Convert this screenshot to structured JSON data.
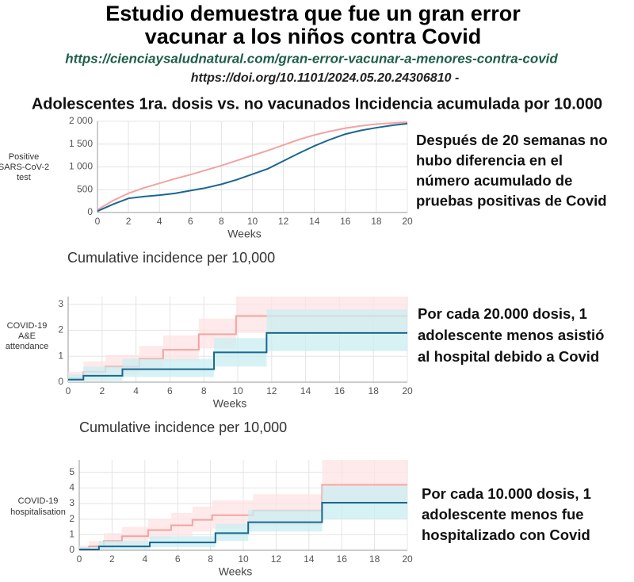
{
  "header": {
    "title": [
      "Estudio demuestra que fue un gran error",
      "vacunar a los niños contra Covid"
    ],
    "url": "https://cienciaysaludnatural.com/gran-error-vacunar-a-menores-contra-covid",
    "doi": "https://doi.org/10.1101/2024.05.20.24306810 -",
    "heading": "Adolescentes 1ra. dosis vs. no vacunados Incidencia acumulada por 10.000"
  },
  "chart_data": [
    {
      "type": "line",
      "ylabel": [
        "Positive",
        "SARS-CoV-2",
        "test"
      ],
      "xlabel": "Weeks",
      "annotation": [
        "Después de 20 semanas no",
        "hubo diferencia en el",
        "número acumulado de",
        "pruebas positivas de Covid"
      ],
      "x": [
        0,
        1,
        2,
        3,
        4,
        5,
        6,
        7,
        8,
        9,
        10,
        11,
        12,
        13,
        14,
        15,
        16,
        17,
        18,
        19,
        20
      ],
      "xlim": [
        0,
        20
      ],
      "xticks": [
        0,
        2,
        4,
        6,
        8,
        10,
        12,
        14,
        16,
        18,
        20
      ],
      "ylim": [
        0,
        2000
      ],
      "yticks": [
        0,
        500,
        {
          "value": 1000,
          "label": "1 000"
        },
        {
          "value": 1500,
          "label": "1 500"
        },
        {
          "value": 2000,
          "label": "2 000"
        }
      ],
      "grid": true,
      "series": [
        {
          "color": "#f2a3a3",
          "values": [
            60,
            260,
            420,
            540,
            640,
            740,
            830,
            930,
            1030,
            1140,
            1250,
            1360,
            1480,
            1600,
            1700,
            1780,
            1850,
            1900,
            1940,
            1960,
            1980
          ]
        },
        {
          "color": "#1a6790",
          "values": [
            30,
            180,
            310,
            350,
            380,
            420,
            480,
            540,
            620,
            720,
            840,
            960,
            1130,
            1300,
            1460,
            1600,
            1720,
            1800,
            1860,
            1910,
            1950
          ]
        }
      ]
    },
    {
      "type": "step",
      "title": "Cumulative incidence per 10,000",
      "ylabel": [
        "COVID-19",
        "A&E",
        "attendance"
      ],
      "xlabel": "Weeks",
      "annotation": [
        "Por cada 20.000 dosis, 1",
        "adolescente menos asistió",
        "al hospital debido a Covid"
      ],
      "xlim": [
        0,
        20
      ],
      "xticks": [
        0,
        2,
        4,
        6,
        8,
        10,
        12,
        14,
        16,
        18,
        20
      ],
      "ylim": [
        0,
        3.3
      ],
      "yticks": [
        0,
        1,
        2,
        3
      ],
      "grid": true,
      "series": [
        {
          "color": "#f2a3a3",
          "band_color": "#fde3e3",
          "x": [
            0,
            0.9,
            2.2,
            4.2,
            5.6,
            7.7,
            9.9
          ],
          "values": [
            0.15,
            0.4,
            0.6,
            0.9,
            1.25,
            1.85,
            2.55
          ],
          "lower": [
            0,
            0.15,
            0.3,
            0.5,
            0.8,
            1.3,
            1.9
          ],
          "upper": [
            0.4,
            0.8,
            1.05,
            1.4,
            1.8,
            2.45,
            3.3
          ]
        },
        {
          "color": "#1a6790",
          "band_color": "#c9eef2",
          "x": [
            0,
            0.9,
            3.2,
            8.6,
            11.7
          ],
          "values": [
            0.1,
            0.25,
            0.5,
            1.15,
            1.9
          ],
          "lower": [
            0,
            0.05,
            0.2,
            0.6,
            1.2
          ],
          "upper": [
            0.3,
            0.6,
            0.9,
            1.7,
            2.8
          ]
        }
      ]
    },
    {
      "type": "step",
      "title": "Cumulative incidence per 10,000",
      "ylabel": [
        "COVID-19",
        "hospitalisation"
      ],
      "xlabel": "Weeks",
      "annotation": [
        "Por cada 10.000 dosis, 1",
        "adolescente menos fue",
        "hospitalizado con Covid"
      ],
      "xlim": [
        0,
        20
      ],
      "xticks": [
        0,
        2,
        4,
        6,
        8,
        10,
        12,
        14,
        16,
        18,
        20
      ],
      "ylim": [
        0,
        5.8
      ],
      "yticks": [
        0,
        1,
        2,
        3,
        4,
        5
      ],
      "grid": true,
      "series": [
        {
          "color": "#f2a3a3",
          "band_color": "#fde3e3",
          "x": [
            0,
            0.6,
            1.5,
            2.6,
            4.2,
            5.6,
            6.9,
            8.1,
            10.6,
            14.8
          ],
          "values": [
            0.1,
            0.25,
            0.6,
            0.9,
            1.3,
            1.6,
            1.95,
            2.25,
            2.55,
            4.2
          ],
          "lower": [
            0,
            0.05,
            0.2,
            0.4,
            0.7,
            0.9,
            1.2,
            1.4,
            1.6,
            3.1
          ],
          "upper": [
            0.3,
            0.6,
            1.1,
            1.5,
            2.0,
            2.4,
            2.8,
            3.2,
            3.6,
            5.8
          ]
        },
        {
          "color": "#1a6790",
          "band_color": "#c9eef2",
          "x": [
            0,
            1.2,
            4.3,
            8.3,
            10.3,
            14.8
          ],
          "values": [
            0.05,
            0.25,
            0.5,
            1.1,
            1.8,
            3.05
          ],
          "lower": [
            0,
            0.05,
            0.2,
            0.6,
            1.2,
            2.0
          ],
          "upper": [
            0.2,
            0.6,
            0.9,
            1.7,
            2.6,
            4.1
          ]
        }
      ]
    }
  ]
}
